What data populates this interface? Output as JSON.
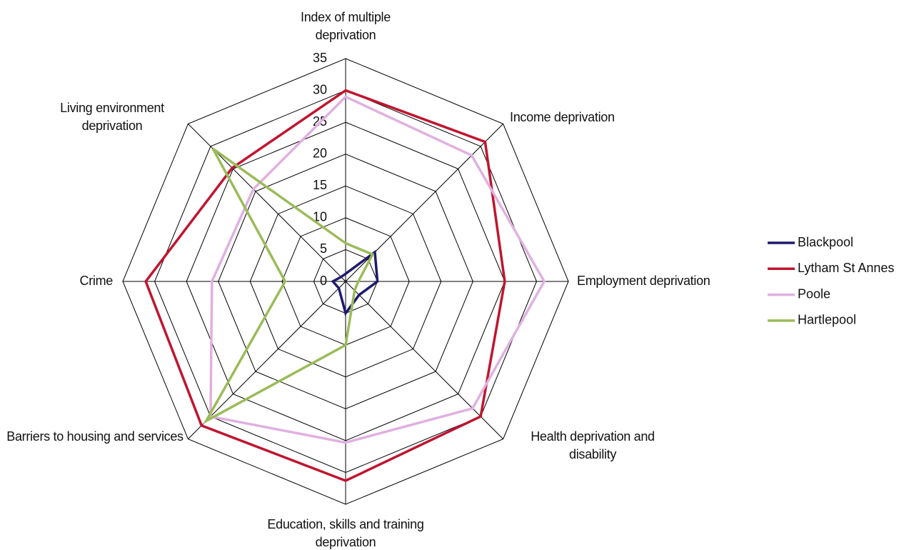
{
  "chart_data": {
    "type": "radar",
    "categories": [
      "Index of multiple deprivation",
      "Income deprivation",
      "Employment deprivation",
      "Health deprivation and disability",
      "Education, skills and training deprivation",
      "Barriers to housing and services",
      "Crime",
      "Living environment deprivation"
    ],
    "series": [
      {
        "name": "Blackpool",
        "color": "#1f1a6e",
        "values": [
          1.2,
          6.5,
          5,
          3,
          5,
          1.5,
          2,
          1
        ]
      },
      {
        "name": "Lytham St Annes",
        "color": "#c0152f",
        "values": [
          30,
          31,
          25,
          30,
          31.3,
          32,
          31.4,
          25.2
        ]
      },
      {
        "name": "Poole",
        "color": "#e0b0e0",
        "values": [
          29,
          28,
          31.2,
          28.2,
          25.3,
          30,
          21,
          20.5
        ]
      },
      {
        "name": "Hartlepool",
        "color": "#9bbb59",
        "values": [
          6,
          6,
          2,
          2,
          10,
          31,
          9.5,
          29.5
        ]
      }
    ],
    "ylim": [
      0,
      35
    ],
    "yticks": [
      0,
      5,
      10,
      15,
      20,
      25,
      30,
      35
    ],
    "grid": true,
    "legend": "right"
  }
}
